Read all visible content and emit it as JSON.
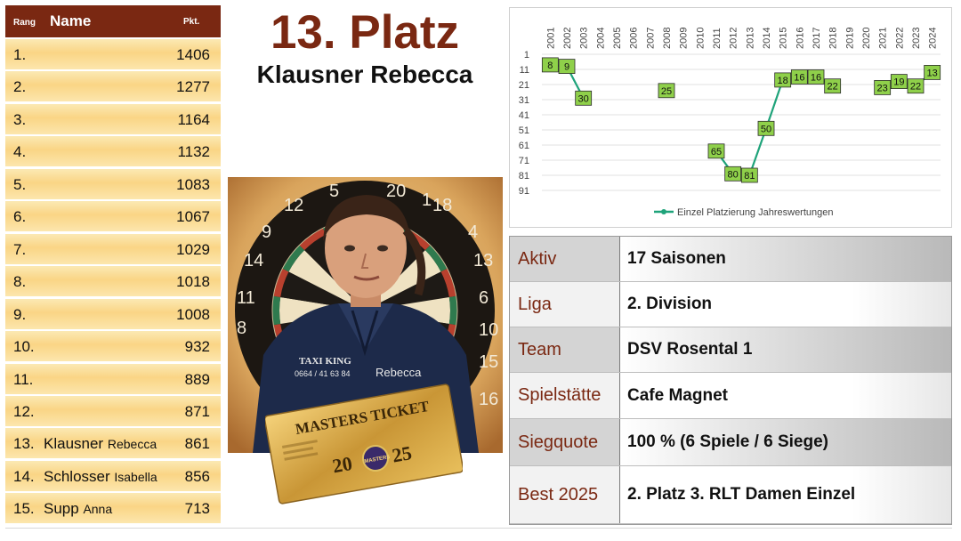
{
  "ranking": {
    "headers": {
      "rank": "Rang",
      "name": "Name",
      "points": "Pkt."
    },
    "rows": [
      {
        "rank": "1.",
        "last": "",
        "first": "",
        "points": "1406"
      },
      {
        "rank": "2.",
        "last": "",
        "first": "",
        "points": "1277"
      },
      {
        "rank": "3.",
        "last": "",
        "first": "",
        "points": "1164"
      },
      {
        "rank": "4.",
        "last": "",
        "first": "",
        "points": "1132"
      },
      {
        "rank": "5.",
        "last": "",
        "first": "",
        "points": "1083"
      },
      {
        "rank": "6.",
        "last": "",
        "first": "",
        "points": "1067"
      },
      {
        "rank": "7.",
        "last": "",
        "first": "",
        "points": "1029"
      },
      {
        "rank": "8.",
        "last": "",
        "first": "",
        "points": "1018"
      },
      {
        "rank": "9.",
        "last": "",
        "first": "",
        "points": "1008"
      },
      {
        "rank": "10.",
        "last": "",
        "first": "",
        "points": "932"
      },
      {
        "rank": "11.",
        "last": "",
        "first": "",
        "points": "889"
      },
      {
        "rank": "12.",
        "last": "",
        "first": "",
        "points": "871"
      },
      {
        "rank": "13.",
        "last": "Klausner",
        "first": "Rebecca",
        "points": "861"
      },
      {
        "rank": "14.",
        "last": "Schlosser",
        "first": "Isabella",
        "points": "856"
      },
      {
        "rank": "15.",
        "last": "Supp",
        "first": "Anna",
        "points": "713"
      }
    ]
  },
  "title": {
    "place": "13. Platz",
    "name": "Klausner Rebecca"
  },
  "portrait": {
    "jacket_left": "TAXI KING",
    "jacket_phone": "0664 / 41 63 84",
    "jacket_name": "Rebecca",
    "ticket_title": "MASTERS TICKET",
    "ticket_year_left": "20",
    "ticket_year_right": "25",
    "ticket_logo": "MASTERS",
    "board_numbers": [
      "12",
      "5",
      "20",
      "1",
      "18",
      "9",
      "4",
      "14",
      "13",
      "11",
      "6",
      "8",
      "10",
      "16",
      "15"
    ]
  },
  "chart_data": {
    "type": "line",
    "x": [
      "2001",
      "2002",
      "2003",
      "2004",
      "2005",
      "2006",
      "2007",
      "2008",
      "2009",
      "2010",
      "2011",
      "2012",
      "2013",
      "2014",
      "2015",
      "2016",
      "2017",
      "2018",
      "2019",
      "2020",
      "2021",
      "2022",
      "2023",
      "2024"
    ],
    "series": [
      {
        "name": "Einzel Platzierung Jahreswertungen",
        "values": [
          8,
          9,
          30,
          null,
          null,
          null,
          null,
          25,
          null,
          null,
          65,
          80,
          81,
          50,
          18,
          16,
          16,
          22,
          null,
          null,
          23,
          19,
          22,
          13
        ]
      }
    ],
    "y_ticks": [
      1,
      11,
      21,
      31,
      41,
      51,
      61,
      71,
      81,
      91
    ],
    "ylim": [
      1,
      91
    ],
    "y_reversed": true,
    "x_axis_position": "top",
    "grid": true,
    "legend": "bottom",
    "colors": {
      "line": "#1fa37a",
      "label_fill": "#8fd04a",
      "grid": "#e0e0e0"
    }
  },
  "info": {
    "rows": [
      {
        "label": "Aktiv",
        "value": "17 Saisonen"
      },
      {
        "label": "Liga",
        "value": "2. Division"
      },
      {
        "label": "Team",
        "value": "DSV Rosental 1"
      },
      {
        "label": "Spielstätte",
        "value": "Cafe Magnet"
      },
      {
        "label": "Siegquote",
        "value": "100 % (6 Spiele / 6 Siege)"
      },
      {
        "label": "Best 2025",
        "value": "2. Platz 3. RLT Damen Einzel"
      }
    ]
  },
  "colors": {
    "accent": "#7a2812",
    "row_gold": "#fad585"
  }
}
